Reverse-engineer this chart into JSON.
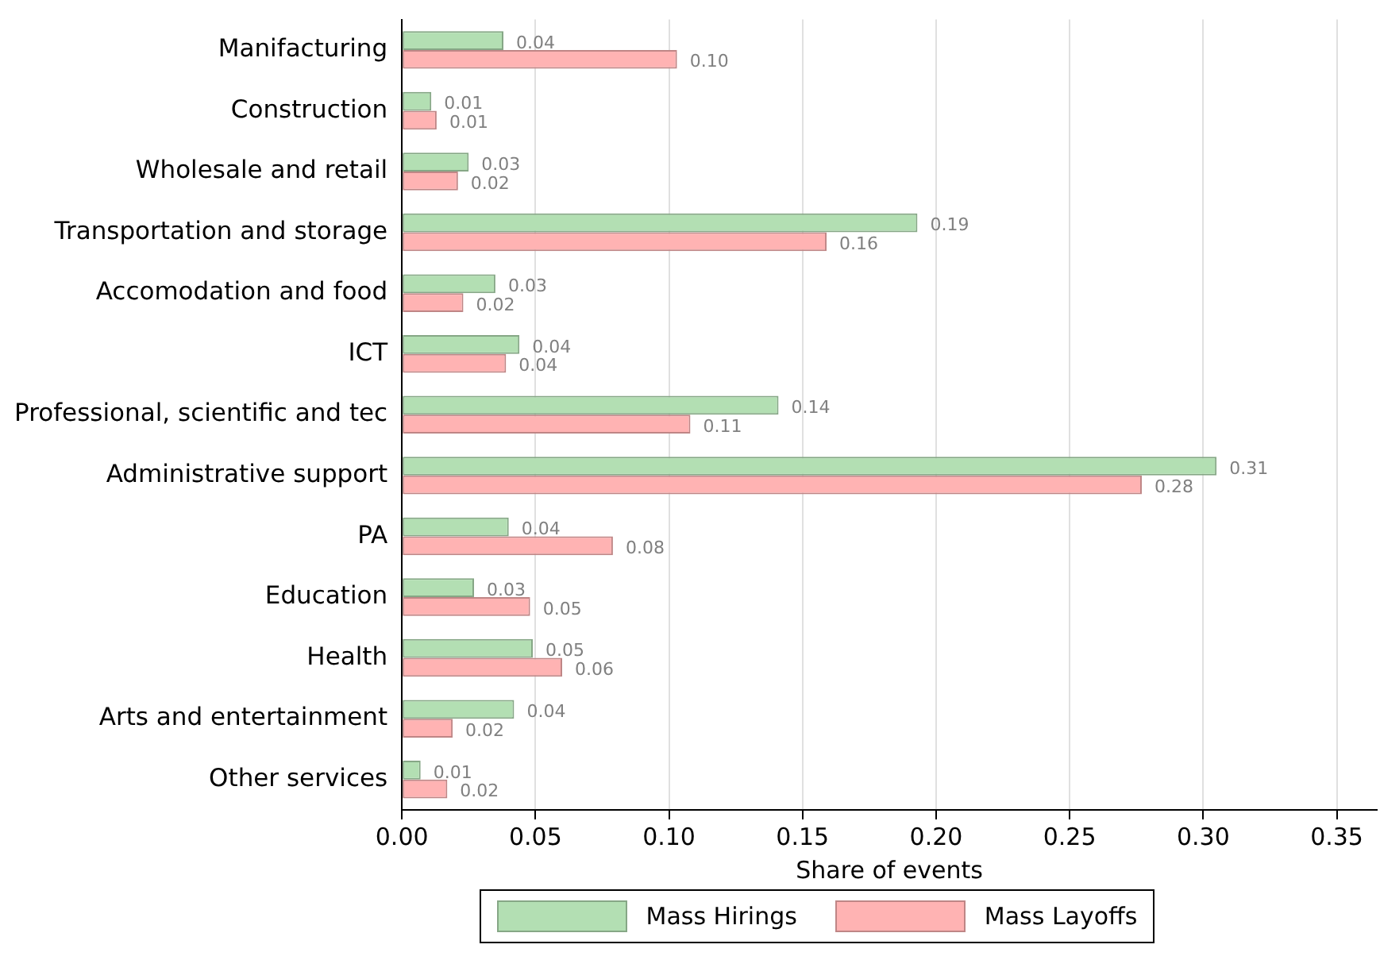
{
  "chart_data": {
    "type": "bar",
    "orientation": "horizontal",
    "xlabel": "Share of events",
    "categories": [
      "Manifacturing",
      "Construction",
      "Wholesale and retail",
      "Transportation and storage",
      "Accomodation and food",
      "ICT",
      "Professional, scientific and tec",
      "Administrative support",
      "PA",
      "Education",
      "Health",
      "Arts and entertainment",
      "Other services"
    ],
    "series": [
      {
        "name": "Mass Hirings",
        "color": "#b3dfb3",
        "values": [
          0.038,
          0.011,
          0.025,
          0.193,
          0.035,
          0.044,
          0.141,
          0.305,
          0.04,
          0.027,
          0.049,
          0.042,
          0.007
        ],
        "value_labels": [
          "0.04",
          "0.01",
          "0.03",
          "0.19",
          "0.03",
          "0.04",
          "0.14",
          "0.31",
          "0.04",
          "0.03",
          "0.05",
          "0.04",
          "0.01"
        ]
      },
      {
        "name": "Mass Layoffs",
        "color": "#ffb3b3",
        "values": [
          0.103,
          0.013,
          0.021,
          0.159,
          0.023,
          0.039,
          0.108,
          0.277,
          0.079,
          0.048,
          0.06,
          0.019,
          0.017
        ],
        "value_labels": [
          "0.10",
          "0.01",
          "0.02",
          "0.16",
          "0.02",
          "0.04",
          "0.11",
          "0.28",
          "0.08",
          "0.05",
          "0.06",
          "0.02",
          "0.02"
        ]
      }
    ],
    "xlim": [
      0,
      0.365
    ],
    "xticks": [
      {
        "value": 0,
        "label": "0.00"
      },
      {
        "value": 0.05,
        "label": "0.05"
      },
      {
        "value": 0.1,
        "label": "0.10"
      },
      {
        "value": 0.15,
        "label": "0.15"
      },
      {
        "value": 0.2,
        "label": "0.20"
      },
      {
        "value": 0.25,
        "label": "0.25"
      },
      {
        "value": 0.3,
        "label": "0.30"
      },
      {
        "value": 0.35,
        "label": "0.35"
      }
    ],
    "grid": "x",
    "legend": "bottom"
  }
}
